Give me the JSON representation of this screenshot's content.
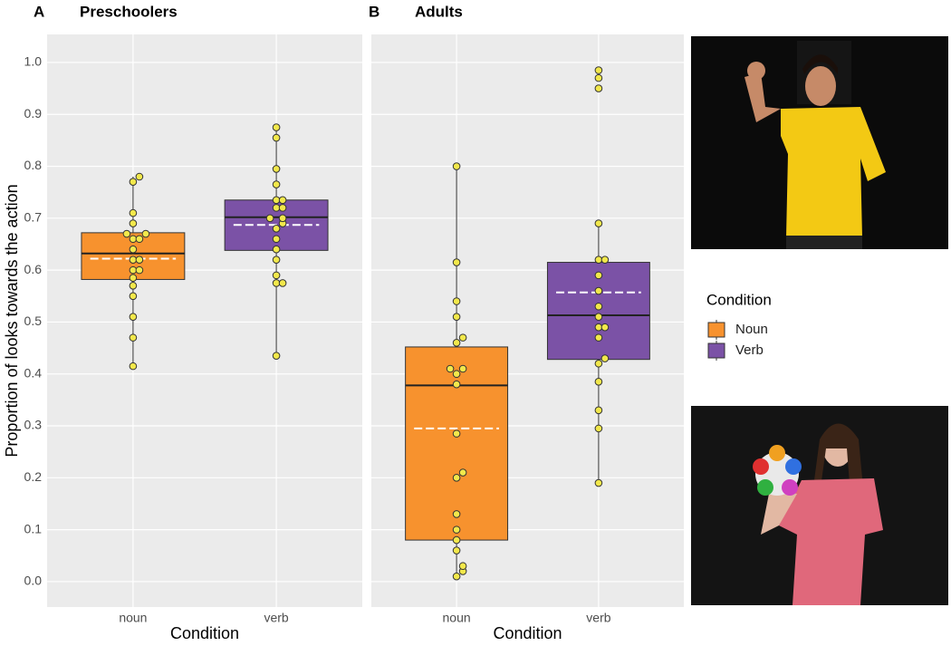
{
  "chart_data": [
    {
      "type": "box",
      "label": "A",
      "title": "Preschoolers",
      "x_label": "Condition",
      "y_label": "Proportion of looks towards the action",
      "categories": [
        "noun",
        "verb"
      ],
      "ylim": [
        -0.049,
        1.054
      ],
      "show_ytick_labels": true,
      "grid": true,
      "yticks": [
        {
          "value": 0,
          "label": "0.0"
        },
        0.1,
        0.2,
        0.3,
        0.4,
        0.5,
        0.6,
        0.7,
        0.8,
        0.9,
        {
          "value": 1,
          "label": "1.0"
        }
      ],
      "boxes": [
        {
          "whisker_low": 0.415,
          "q1": 0.582,
          "median": 0.632,
          "q3": 0.672,
          "whisker_high": 0.78,
          "mean": 0.622,
          "points": [
            0.415,
            0.47,
            0.51,
            0.55,
            0.57,
            0.585,
            0.6,
            0.6,
            0.62,
            0.62,
            0.64,
            0.66,
            0.66,
            0.67,
            0.67,
            0.69,
            0.71,
            0.77,
            0.78
          ]
        },
        {
          "whisker_low": 0.435,
          "q1": 0.638,
          "median": 0.702,
          "q3": 0.735,
          "whisker_high": 0.875,
          "mean": 0.687,
          "points": [
            0.435,
            0.575,
            0.575,
            0.59,
            0.62,
            0.64,
            0.66,
            0.68,
            0.69,
            0.7,
            0.7,
            0.72,
            0.72,
            0.735,
            0.735,
            0.765,
            0.795,
            0.855,
            0.875
          ]
        }
      ]
    },
    {
      "type": "box",
      "label": "B",
      "title": "Adults",
      "x_label": "Condition",
      "categories": [
        "noun",
        "verb"
      ],
      "ylim": [
        -0.049,
        1.054
      ],
      "show_ytick_labels": false,
      "grid": true,
      "yticks": [
        {
          "value": 0,
          "label": "0.0"
        },
        0.1,
        0.2,
        0.3,
        0.4,
        0.5,
        0.6,
        0.7,
        0.8,
        0.9,
        {
          "value": 1,
          "label": "1.0"
        }
      ],
      "boxes": [
        {
          "whisker_low": 0.01,
          "q1": 0.08,
          "median": 0.378,
          "q3": 0.452,
          "whisker_high": 0.8,
          "mean": 0.295,
          "points": [
            0.01,
            0.02,
            0.03,
            0.06,
            0.08,
            0.1,
            0.13,
            0.2,
            0.21,
            0.285,
            0.38,
            0.4,
            0.41,
            0.41,
            0.46,
            0.47,
            0.51,
            0.54,
            0.615,
            0.8
          ]
        },
        {
          "whisker_low": 0.19,
          "q1": 0.428,
          "median": 0.513,
          "q3": 0.615,
          "whisker_high": 0.69,
          "mean": 0.557,
          "points": [
            0.19,
            0.295,
            0.33,
            0.385,
            0.42,
            0.43,
            0.47,
            0.49,
            0.49,
            0.51,
            0.53,
            0.56,
            0.59,
            0.62,
            0.62,
            0.69,
            0.95,
            0.97,
            0.985
          ]
        }
      ]
    }
  ],
  "legend": {
    "title": "Condition",
    "entries": [
      {
        "name": "Noun",
        "color": "#f7922e"
      },
      {
        "name": "Verb",
        "color": "#7b52a6"
      }
    ]
  }
}
